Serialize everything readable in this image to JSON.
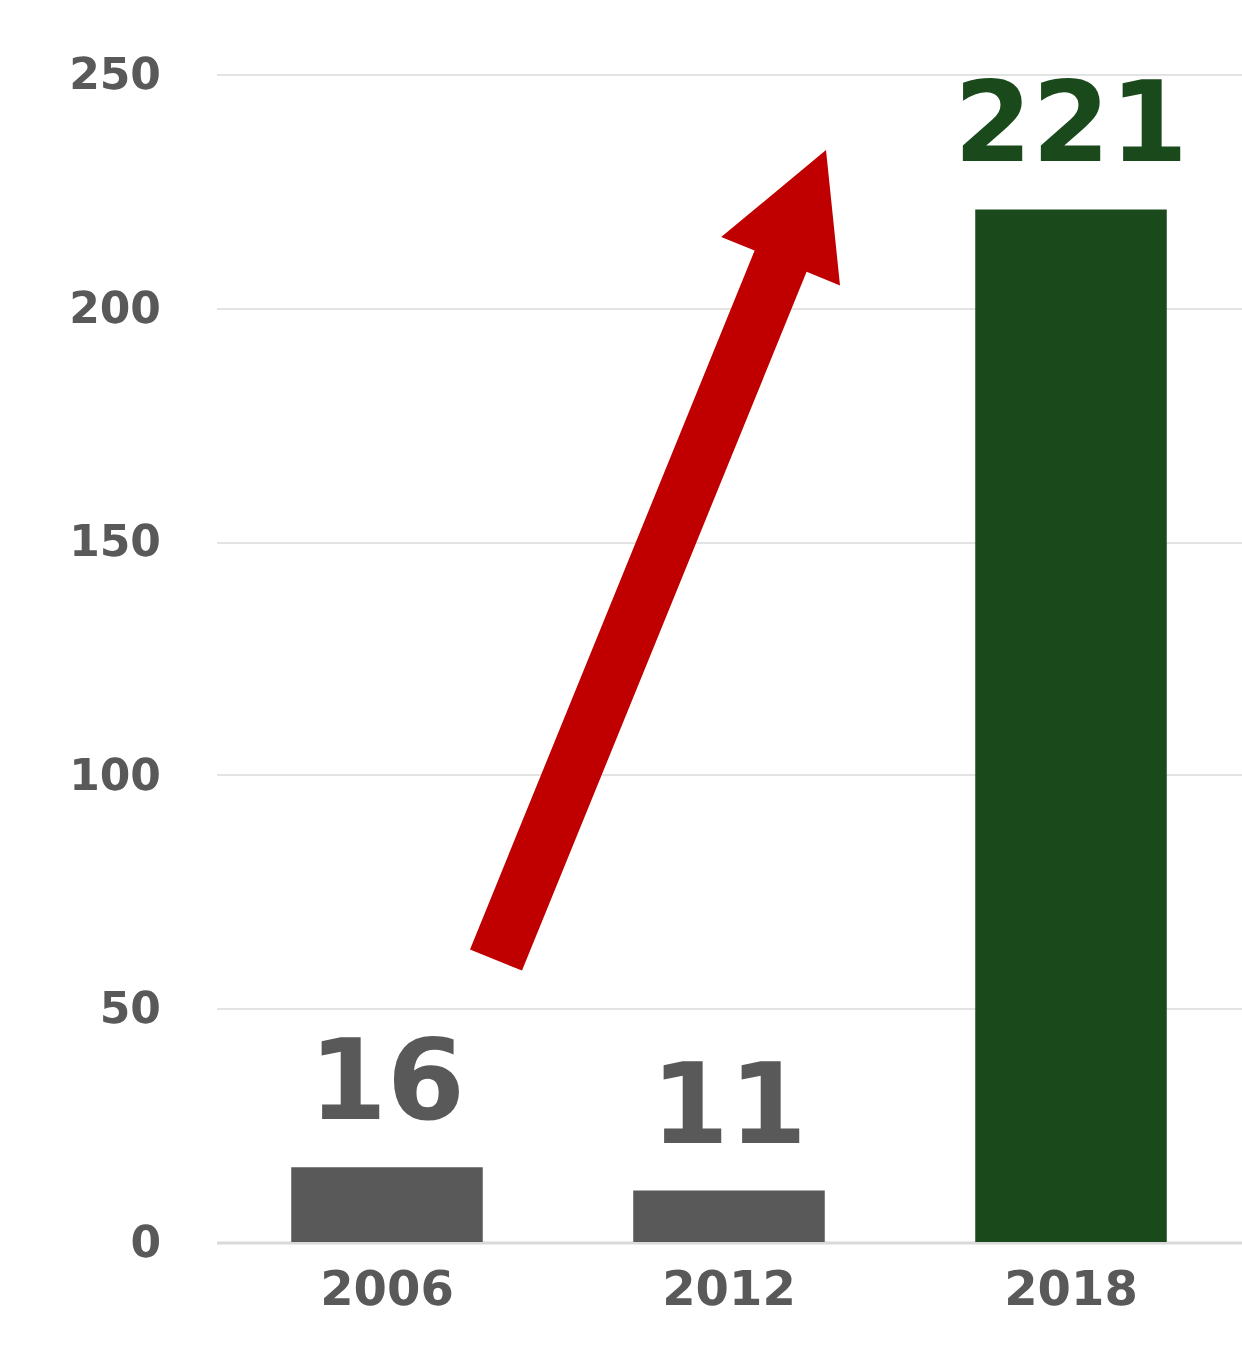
{
  "chart_data": {
    "type": "bar",
    "categories": [
      "2006",
      "2012",
      "2018"
    ],
    "values": [
      16,
      11,
      221
    ],
    "colors": [
      "#595959",
      "#595959",
      "#1a4a1c"
    ],
    "ylim": [
      0,
      250
    ],
    "yticks": [
      0,
      50,
      100,
      150,
      200,
      250
    ],
    "grid": "y",
    "data_labels": true
  }
}
